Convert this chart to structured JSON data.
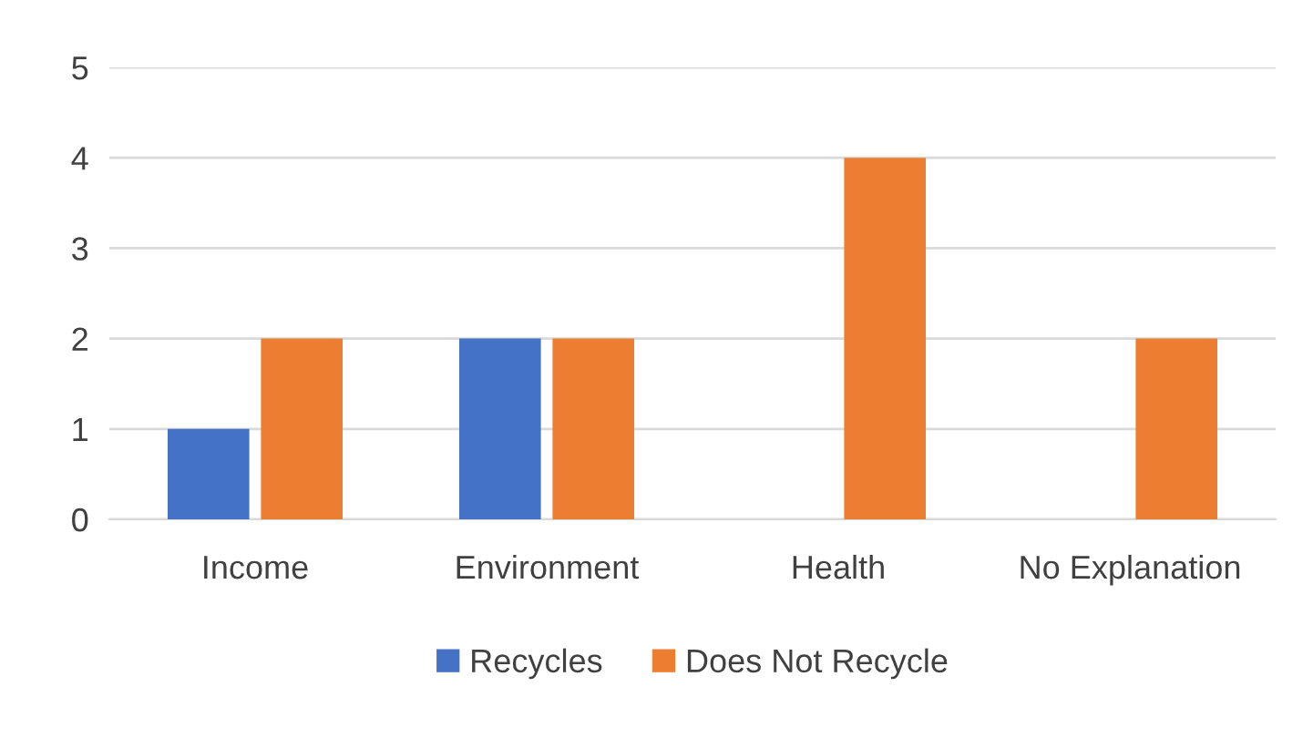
{
  "chart_data": {
    "type": "bar",
    "categories": [
      "Income",
      "Environment",
      "Health",
      "No Explanation"
    ],
    "series": [
      {
        "name": "Recycles",
        "color": "#4472c4",
        "values": [
          1,
          2,
          0,
          0
        ]
      },
      {
        "name": "Does Not Recycle",
        "color": "#ed7d31",
        "values": [
          2,
          2,
          4,
          2
        ]
      }
    ],
    "ylim": [
      0,
      5
    ],
    "yticks": [
      0,
      1,
      2,
      3,
      4,
      5
    ],
    "grid": "y",
    "legend": "bottom"
  }
}
